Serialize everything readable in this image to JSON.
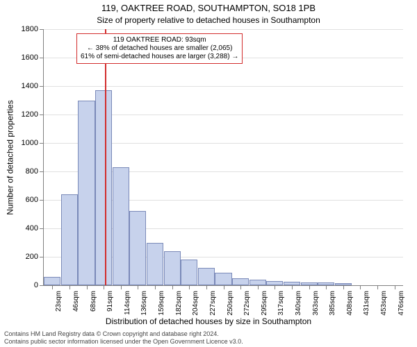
{
  "title": "119, OAKTREE ROAD, SOUTHAMPTON, SO18 1PB",
  "subtitle": "Size of property relative to detached houses in Southampton",
  "ylabel": "Number of detached properties",
  "xlabel": "Distribution of detached houses by size in Southampton",
  "footer1": "Contains HM Land Registry data © Crown copyright and database right 2024.",
  "footer2": "Contains public sector information licensed under the Open Government Licence v3.0.",
  "chart": {
    "type": "histogram",
    "ylim": [
      0,
      1800
    ],
    "ytick_step": 200,
    "background_color": "#ffffff",
    "grid_color": "#e0e0e0",
    "axis_color": "#808080",
    "bar_fill": "#c7d2ec",
    "bar_border": "#7a89b8",
    "ref_line_color": "#d22c2c",
    "ref_value": 93,
    "x_start": 23,
    "x_step": 22.65,
    "categories": [
      "23sqm",
      "46sqm",
      "68sqm",
      "91sqm",
      "114sqm",
      "136sqm",
      "159sqm",
      "182sqm",
      "204sqm",
      "227sqm",
      "250sqm",
      "272sqm",
      "295sqm",
      "317sqm",
      "340sqm",
      "363sqm",
      "385sqm",
      "408sqm",
      "431sqm",
      "453sqm",
      "476sqm"
    ],
    "values": [
      60,
      640,
      1300,
      1370,
      830,
      520,
      300,
      240,
      180,
      120,
      90,
      50,
      40,
      30,
      25,
      20,
      18,
      15,
      0,
      0,
      0
    ],
    "label_fontsize": 11,
    "title_fontsize": 13
  },
  "callout": {
    "line1": "119 OAKTREE ROAD: 93sqm",
    "line2": "← 38% of detached houses are smaller (2,065)",
    "line3": "61% of semi-detached houses are larger (3,288) →",
    "border_color": "#d22c2c"
  }
}
